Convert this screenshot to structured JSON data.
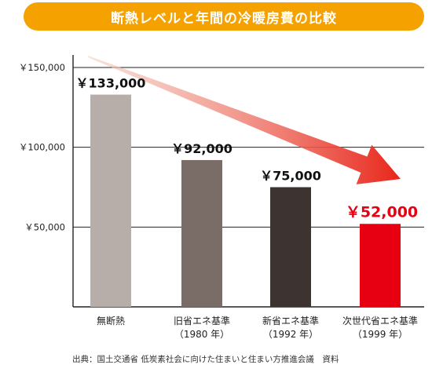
{
  "title": "断熱レベルと年間の冷暖房費の比較",
  "source": "出典：国土交通省 低炭素社会に向けた住まいと住まい方推進会議　資料",
  "colors": {
    "banner": "#f5a200",
    "bars": [
      "#b7ada9",
      "#7a6c67",
      "#3d3330",
      "#e60012"
    ],
    "highlight_label": "#e60012",
    "arrow_start": "#f3cfc2",
    "arrow_end": "#e9261a"
  },
  "chart_data": {
    "type": "bar",
    "categories": [
      [
        "無断熱"
      ],
      [
        "旧省エネ基準",
        "（1980 年）"
      ],
      [
        "新省エネ基準",
        "（1992 年）"
      ],
      [
        "次世代省エネ基準",
        "（1999 年）"
      ]
    ],
    "values": [
      133000,
      92000,
      75000,
      52000
    ],
    "value_labels": [
      "￥133,000",
      "￥92,000",
      "￥75,000",
      "￥52,000"
    ],
    "y_ticks": [
      {
        "value": 50000,
        "label": "￥50,000"
      },
      {
        "value": 100000,
        "label": "￥100,000"
      },
      {
        "value": 150000,
        "label": "￥150,000"
      }
    ],
    "ylim": [
      0,
      150000
    ],
    "grid": true,
    "highlight_index": 3,
    "trend_arrow": true
  }
}
